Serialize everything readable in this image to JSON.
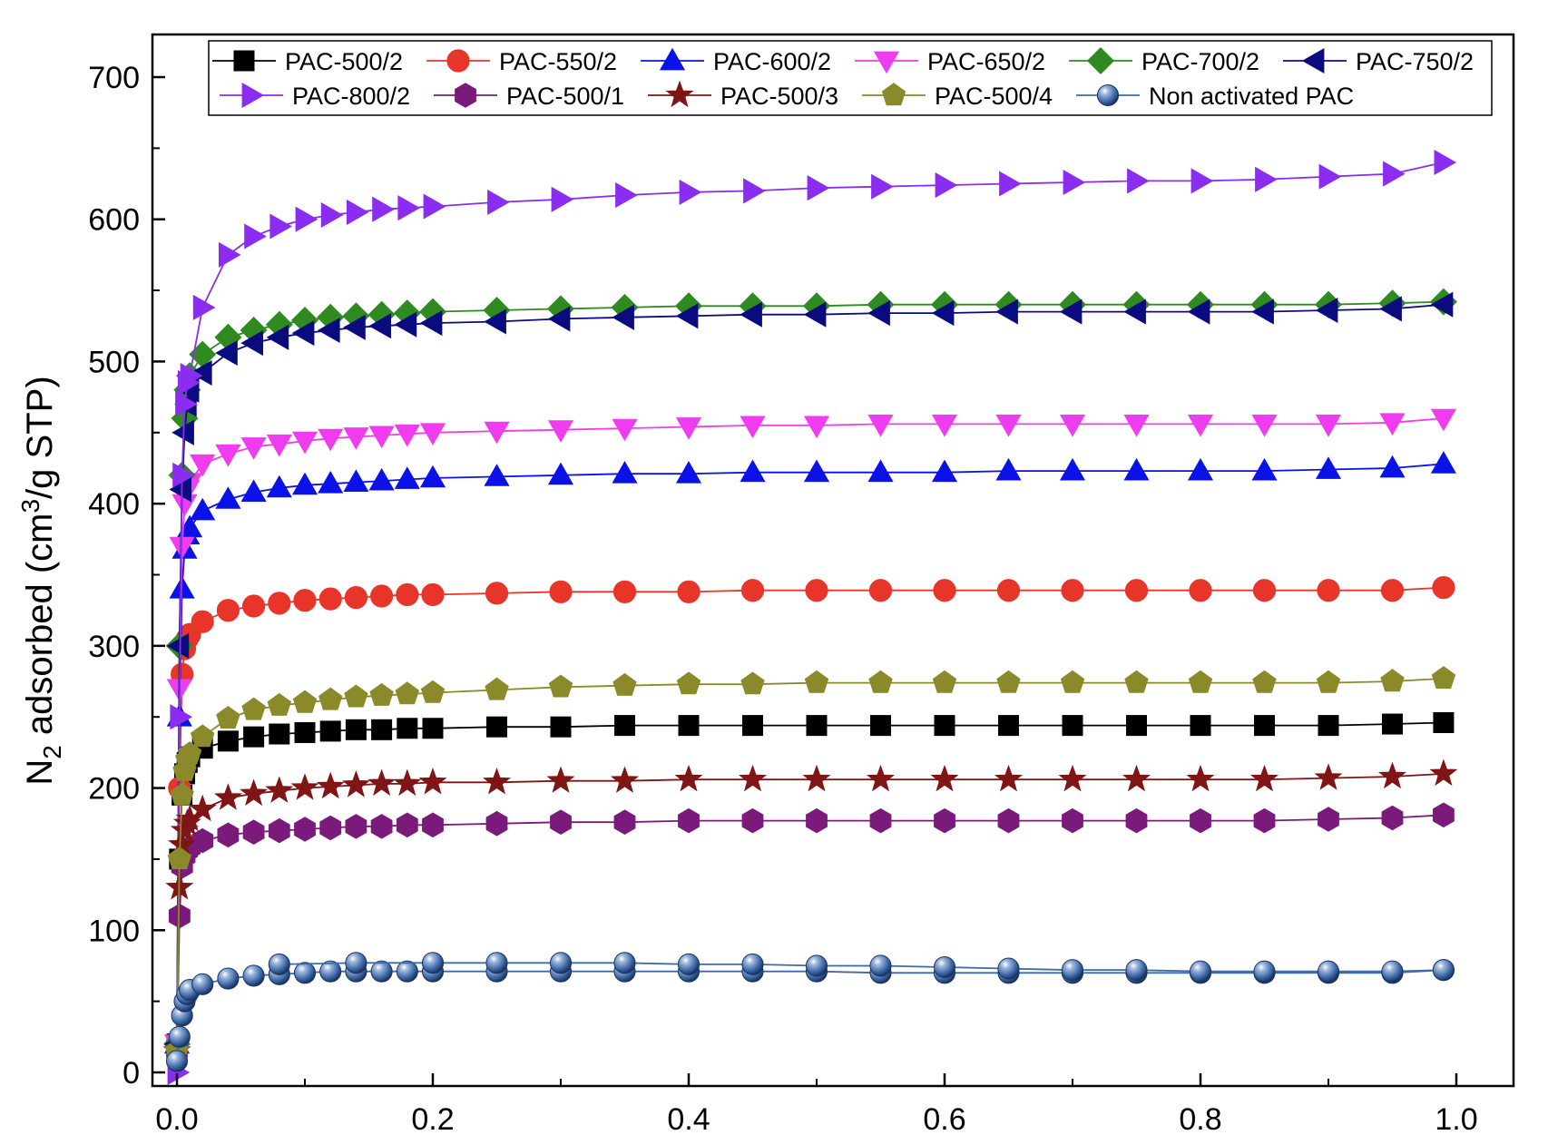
{
  "chart_data": {
    "type": "scatter",
    "title": "",
    "xlabel": "",
    "ylabel": {
      "prefix": "N",
      "prefix_sub": "2",
      "main": " adsorbed (cm",
      "sup": "3",
      "suffix": "/g STP)"
    },
    "xlim": [
      0.0,
      1.0
    ],
    "ylim": [
      -10,
      700
    ],
    "yticks": [
      "0",
      "100",
      "200",
      "300",
      "400",
      "500",
      "600",
      "700"
    ],
    "ytick_values": [
      0,
      100,
      200,
      300,
      400,
      500,
      600,
      700
    ],
    "xticks": [
      "0.0",
      "0.2",
      "0.4",
      "0.6",
      "0.8",
      "1.0"
    ],
    "xtick_values": [
      0.0,
      0.2,
      0.4,
      0.6,
      0.8,
      1.0
    ],
    "legend_position": "top",
    "grid": false,
    "x": [
      0.0,
      0.002,
      0.004,
      0.006,
      0.008,
      0.01,
      0.02,
      0.04,
      0.06,
      0.08,
      0.1,
      0.12,
      0.14,
      0.16,
      0.18,
      0.2,
      0.25,
      0.3,
      0.35,
      0.4,
      0.45,
      0.5,
      0.55,
      0.6,
      0.65,
      0.7,
      0.75,
      0.8,
      0.85,
      0.9,
      0.95,
      0.99
    ],
    "series": [
      {
        "name": "PAC-500/2",
        "color": "#000000",
        "marker": "square",
        "values": [
          20,
          150,
          195,
          210,
          218,
          222,
          228,
          233,
          236,
          238,
          239,
          240,
          241,
          241,
          242,
          242,
          243,
          243,
          244,
          244,
          244,
          244,
          244,
          244,
          244,
          244,
          244,
          244,
          244,
          244,
          245,
          246
        ]
      },
      {
        "name": "PAC-550/2",
        "color": "#e8352a",
        "marker": "circle",
        "values": [
          20,
          200,
          280,
          298,
          305,
          308,
          317,
          325,
          328,
          330,
          332,
          333,
          334,
          335,
          336,
          336,
          337,
          338,
          338,
          338,
          339,
          339,
          339,
          339,
          339,
          339,
          339,
          339,
          339,
          339,
          339,
          341
        ]
      },
      {
        "name": "PAC-600/2",
        "color": "#0a12e8",
        "marker": "triangle-up",
        "values": [
          20,
          250,
          340,
          368,
          378,
          383,
          395,
          403,
          408,
          411,
          413,
          414,
          415,
          416,
          417,
          418,
          419,
          420,
          421,
          421,
          422,
          422,
          422,
          422,
          423,
          423,
          423,
          423,
          423,
          424,
          425,
          428
        ]
      },
      {
        "name": "PAC-650/2",
        "color": "#ee3cee",
        "marker": "triangle-down",
        "values": [
          20,
          270,
          370,
          400,
          410,
          415,
          428,
          435,
          440,
          442,
          444,
          446,
          447,
          448,
          449,
          450,
          451,
          452,
          453,
          454,
          455,
          455,
          456,
          456,
          456,
          456,
          456,
          456,
          456,
          456,
          457,
          460
        ]
      },
      {
        "name": "PAC-700/2",
        "color": "#2f8a22",
        "marker": "diamond",
        "values": [
          20,
          300,
          420,
          460,
          480,
          490,
          505,
          517,
          522,
          526,
          529,
          531,
          532,
          533,
          534,
          535,
          536,
          537,
          538,
          539,
          539,
          539,
          540,
          540,
          540,
          540,
          540,
          540,
          540,
          540,
          541,
          542
        ]
      },
      {
        "name": "PAC-750/2",
        "color": "#0b0b80",
        "marker": "triangle-left",
        "values": [
          20,
          300,
          410,
          450,
          470,
          480,
          492,
          506,
          513,
          517,
          520,
          522,
          524,
          525,
          526,
          527,
          528,
          530,
          531,
          532,
          533,
          533,
          534,
          534,
          535,
          535,
          535,
          535,
          535,
          536,
          537,
          540
        ]
      },
      {
        "name": "PAC-800/2",
        "color": "#8b2df0",
        "marker": "triangle-right",
        "values": [
          0,
          250,
          420,
          470,
          485,
          490,
          538,
          575,
          588,
          595,
          600,
          603,
          605,
          607,
          608,
          609,
          612,
          614,
          617,
          619,
          620,
          622,
          623,
          624,
          625,
          626,
          627,
          627,
          628,
          630,
          632,
          640
        ]
      },
      {
        "name": "PAC-500/1",
        "color": "#7a1a7a",
        "marker": "hexagon",
        "values": [
          15,
          110,
          145,
          152,
          156,
          158,
          163,
          167,
          169,
          170,
          171,
          172,
          173,
          173,
          174,
          174,
          175,
          176,
          176,
          177,
          177,
          177,
          177,
          177,
          177,
          177,
          177,
          177,
          177,
          178,
          179,
          181
        ]
      },
      {
        "name": "PAC-500/3",
        "color": "#801515",
        "marker": "star",
        "values": [
          15,
          130,
          160,
          170,
          175,
          178,
          185,
          193,
          196,
          198,
          200,
          201,
          202,
          203,
          203,
          204,
          204,
          205,
          205,
          206,
          206,
          206,
          206,
          206,
          206,
          206,
          206,
          206,
          206,
          207,
          208,
          210
        ]
      },
      {
        "name": "PAC-500/4",
        "color": "#8a8a2a",
        "marker": "pentagon",
        "values": [
          15,
          150,
          195,
          212,
          220,
          224,
          236,
          249,
          255,
          258,
          260,
          262,
          264,
          265,
          266,
          267,
          269,
          271,
          272,
          273,
          273,
          274,
          274,
          274,
          274,
          274,
          274,
          274,
          274,
          274,
          275,
          277
        ]
      },
      {
        "name": "Non activated PAC",
        "color": "#3f6aa8",
        "marker": "sphere",
        "values": [
          8,
          25,
          40,
          50,
          55,
          58,
          62,
          66,
          68,
          69,
          70,
          71,
          71,
          71,
          71,
          71,
          71,
          71,
          71,
          71,
          71,
          71,
          70,
          70,
          70,
          70,
          70,
          70,
          70,
          70,
          70,
          72
        ]
      }
    ],
    "desorption_series": {
      "name": "Non activated PAC",
      "x": [
        0.99,
        0.95,
        0.9,
        0.85,
        0.8,
        0.75,
        0.7,
        0.65,
        0.6,
        0.55,
        0.5,
        0.45,
        0.4,
        0.35,
        0.3,
        0.25,
        0.2,
        0.14,
        0.08
      ],
      "values": [
        72,
        71,
        71,
        71,
        71,
        72,
        72,
        73,
        74,
        75,
        75,
        76,
        76,
        77,
        77,
        77,
        77,
        77,
        76
      ]
    }
  }
}
